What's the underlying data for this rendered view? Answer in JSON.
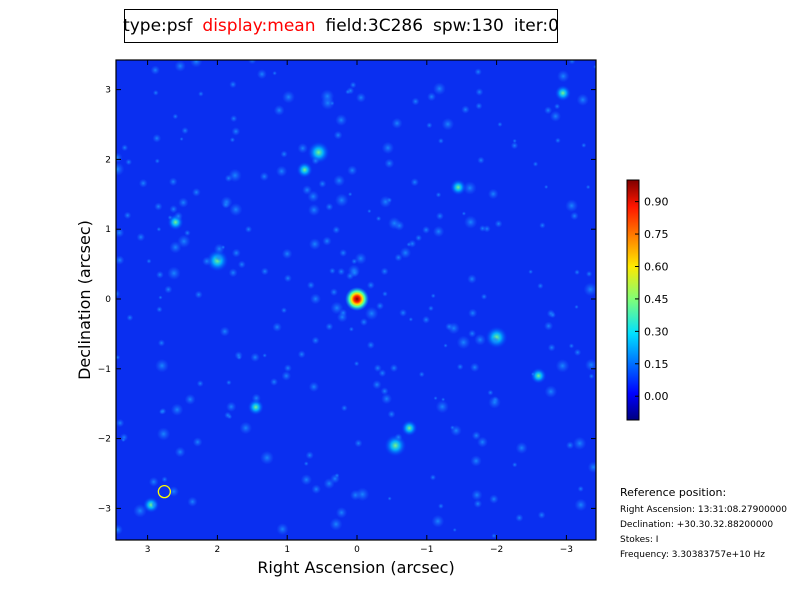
{
  "title": {
    "type": "type:psf",
    "display": "display:mean",
    "field": "field:3C286",
    "spw": "spw:130",
    "iter": "iter:0",
    "display_color": "#ff0000"
  },
  "chart_data": {
    "type": "heatmap",
    "colormap": "jet",
    "xlabel": "Right Ascension (arcsec)",
    "ylabel": "Declination (arcsec)",
    "xlim": [
      3.44,
      -3.44
    ],
    "ylim": [
      -3.44,
      3.44
    ],
    "xticks": [
      "3",
      "2",
      "1",
      "0",
      "−1",
      "−2",
      "−3"
    ],
    "yticks": [
      "3",
      "2",
      "1",
      "0",
      "−1",
      "−2",
      "−3"
    ],
    "colorbar": {
      "range": [
        -0.11,
        1.0
      ],
      "ticks": [
        "0.90",
        "0.75",
        "0.60",
        "0.45",
        "0.30",
        "0.15",
        "0.00"
      ]
    },
    "peak": {
      "x": 0,
      "y": 0,
      "value": 1.0
    },
    "marker_circle": {
      "x": 2.76,
      "y": -2.76,
      "color": "#ffff00"
    }
  },
  "reference": {
    "heading": "Reference position:",
    "ra": "Right Ascension: 13:31:08.27900000",
    "dec": "Declination: +30.30.32.88200000",
    "stokes": "Stokes: I",
    "freq": "Frequency: 3.30383757e+10 Hz"
  }
}
